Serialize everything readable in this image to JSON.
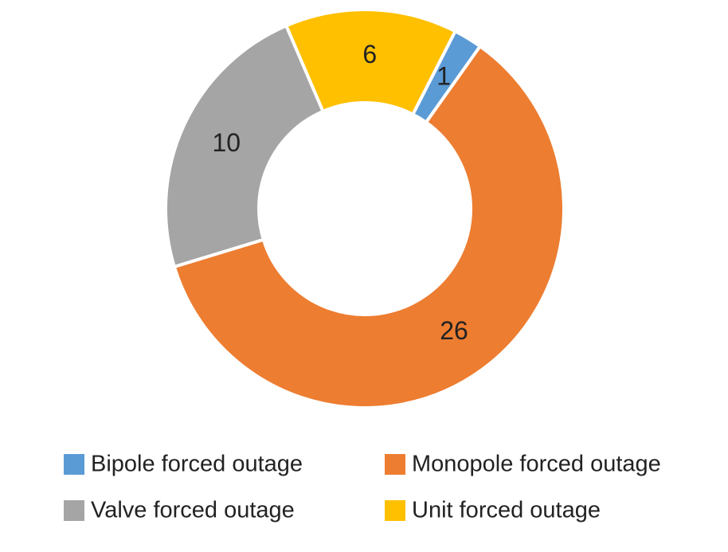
{
  "chart_data": {
    "type": "donut",
    "categories": [
      "Bipole forced outage",
      "Monopole forced outage",
      "Valve forced outage",
      "Unit forced outage"
    ],
    "values": [
      1,
      26,
      10,
      6
    ],
    "colors": [
      "#5b9bd5",
      "#ed7d31",
      "#a5a5a5",
      "#ffc000"
    ],
    "start_angle": 27,
    "legend": "bottom"
  }
}
